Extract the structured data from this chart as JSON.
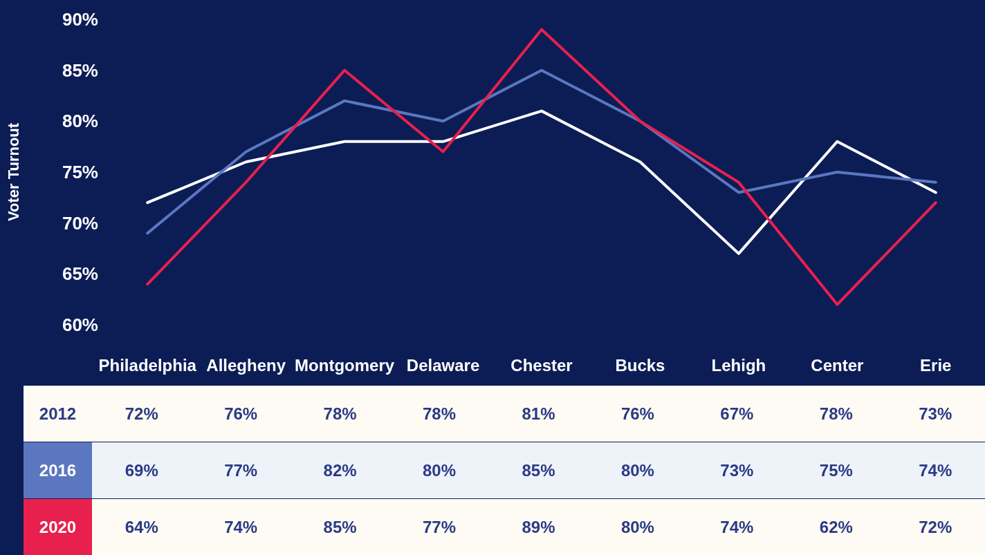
{
  "chart_data": {
    "type": "line",
    "ylabel": "Voter Turnout",
    "categories": [
      "Philadelphia",
      "Allegheny",
      "Montgomery",
      "Delaware",
      "Chester",
      "Bucks",
      "Lehigh",
      "Center",
      "Erie"
    ],
    "series": [
      {
        "name": "2012",
        "color": "#ffffff",
        "values": [
          72,
          76,
          78,
          78,
          81,
          76,
          67,
          78,
          73
        ],
        "value_labels": [
          "72%",
          "76%",
          "78%",
          "78%",
          "81%",
          "76%",
          "67%",
          "78%",
          "73%"
        ]
      },
      {
        "name": "2016",
        "color": "#5b77c0",
        "values": [
          69,
          77,
          82,
          80,
          85,
          80,
          73,
          75,
          74
        ],
        "value_labels": [
          "69%",
          "77%",
          "82%",
          "80%",
          "85%",
          "80%",
          "73%",
          "75%",
          "74%"
        ]
      },
      {
        "name": "2020",
        "color": "#e8204e",
        "values": [
          64,
          74,
          85,
          77,
          89,
          80,
          74,
          62,
          72
        ],
        "value_labels": [
          "64%",
          "74%",
          "85%",
          "77%",
          "89%",
          "80%",
          "74%",
          "62%",
          "72%"
        ]
      }
    ],
    "ylim": [
      60,
      90
    ],
    "yticks": [
      {
        "value": 60,
        "label": "60%"
      },
      {
        "value": 65,
        "label": "65%"
      },
      {
        "value": 70,
        "label": "70%"
      },
      {
        "value": 75,
        "label": "75%"
      },
      {
        "value": 80,
        "label": "80%"
      },
      {
        "value": 85,
        "label": "85%"
      },
      {
        "value": 90,
        "label": "90%"
      }
    ],
    "grid": false,
    "legend": false,
    "marker": "none",
    "line_style": "solid"
  }
}
